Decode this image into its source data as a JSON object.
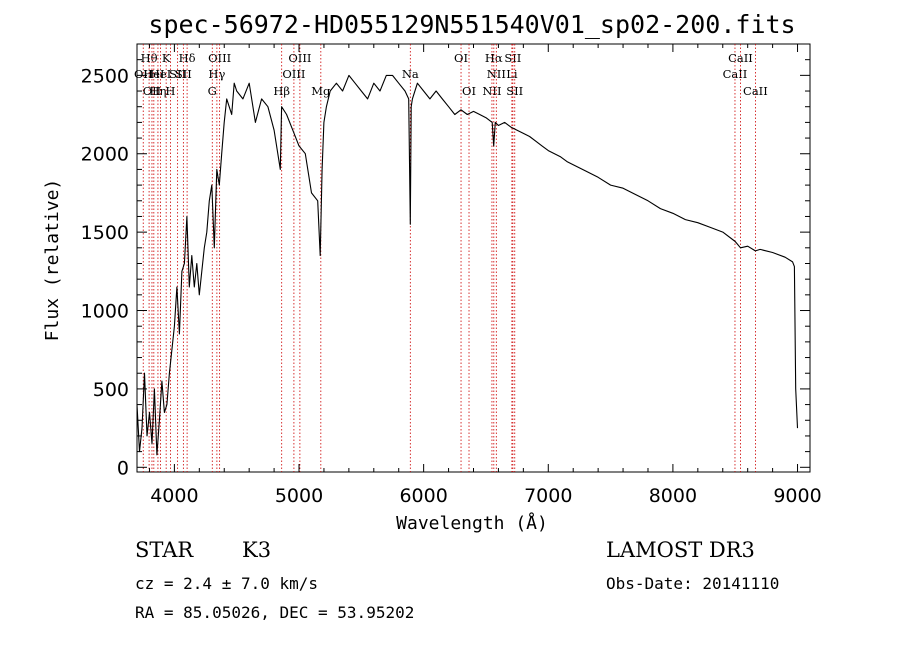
{
  "chart_data": {
    "type": "line",
    "title": "spec-56972-HD055129N551540V01_sp02-200.fits",
    "xlabel": "Wavelength (Å)",
    "ylabel": "Flux (relative)",
    "xlim": [
      3700,
      9100
    ],
    "ylim": [
      -30,
      2700
    ],
    "xticks": [
      4000,
      5000,
      6000,
      7000,
      8000,
      9000
    ],
    "yticks": [
      0,
      500,
      1000,
      1500,
      2000,
      2500
    ],
    "grid": false,
    "series": [
      {
        "name": "flux",
        "x": [
          3700,
          3720,
          3740,
          3760,
          3780,
          3800,
          3820,
          3840,
          3860,
          3880,
          3900,
          3920,
          3940,
          3960,
          3980,
          4000,
          4020,
          4040,
          4060,
          4080,
          4100,
          4120,
          4140,
          4160,
          4180,
          4200,
          4220,
          4240,
          4260,
          4280,
          4300,
          4320,
          4340,
          4360,
          4380,
          4400,
          4420,
          4440,
          4460,
          4480,
          4500,
          4550,
          4600,
          4650,
          4700,
          4750,
          4800,
          4850,
          4860,
          4900,
          4950,
          5000,
          5050,
          5100,
          5150,
          5170,
          5185,
          5200,
          5220,
          5250,
          5300,
          5350,
          5400,
          5450,
          5500,
          5550,
          5600,
          5650,
          5700,
          5750,
          5800,
          5850,
          5880,
          5893,
          5900,
          5910,
          5950,
          6000,
          6050,
          6100,
          6150,
          6200,
          6250,
          6300,
          6350,
          6400,
          6450,
          6500,
          6550,
          6562,
          6575,
          6600,
          6650,
          6700,
          6750,
          6800,
          6850,
          6900,
          6950,
          7000,
          7050,
          7100,
          7150,
          7200,
          7300,
          7400,
          7500,
          7600,
          7700,
          7800,
          7900,
          8000,
          8100,
          8200,
          8300,
          8400,
          8500,
          8542,
          8600,
          8662,
          8700,
          8800,
          8900,
          8960,
          8975,
          8985,
          9000
        ],
        "y": [
          400,
          100,
          250,
          600,
          200,
          350,
          150,
          500,
          80,
          300,
          550,
          350,
          400,
          600,
          750,
          900,
          1150,
          850,
          1250,
          1300,
          1600,
          1150,
          1350,
          1150,
          1300,
          1100,
          1250,
          1400,
          1500,
          1700,
          1800,
          1400,
          1900,
          1800,
          2000,
          2200,
          2350,
          2300,
          2250,
          2450,
          2400,
          2350,
          2450,
          2200,
          2350,
          2300,
          2150,
          1900,
          2300,
          2250,
          2150,
          2050,
          2000,
          1750,
          1700,
          1350,
          1900,
          2200,
          2300,
          2400,
          2450,
          2400,
          2500,
          2450,
          2400,
          2350,
          2450,
          2400,
          2500,
          2500,
          2450,
          2400,
          2350,
          1550,
          2300,
          2350,
          2450,
          2400,
          2350,
          2400,
          2350,
          2300,
          2250,
          2280,
          2250,
          2270,
          2250,
          2230,
          2200,
          2050,
          2200,
          2180,
          2200,
          2170,
          2150,
          2130,
          2110,
          2080,
          2050,
          2020,
          2000,
          1980,
          1950,
          1930,
          1890,
          1850,
          1800,
          1780,
          1740,
          1700,
          1650,
          1620,
          1580,
          1560,
          1530,
          1500,
          1440,
          1400,
          1410,
          1380,
          1390,
          1370,
          1340,
          1310,
          1280,
          500,
          250
        ]
      }
    ],
    "line_markers": [
      {
        "wave": 3750,
        "label": "OII",
        "row": 2
      },
      {
        "wave": 3797,
        "label": "Hθ",
        "row": 1
      },
      {
        "wave": 3820,
        "label": "OII",
        "row": 3
      },
      {
        "wave": 3835,
        "label": "HeI",
        "row": 2
      },
      {
        "wave": 3868,
        "label": "Hη",
        "row": 3
      },
      {
        "wave": 3889,
        "label": "HeI",
        "row": 2
      },
      {
        "wave": 3934,
        "label": "K",
        "row": 1
      },
      {
        "wave": 3968,
        "label": "H",
        "row": 3
      },
      {
        "wave": 4026,
        "label": "SII",
        "row": 2
      },
      {
        "wave": 4072,
        "label": "SII",
        "row": 2
      },
      {
        "wave": 4102,
        "label": "Hδ",
        "row": 1
      },
      {
        "wave": 4304,
        "label": "G",
        "row": 3
      },
      {
        "wave": 4341,
        "label": "Hγ",
        "row": 2
      },
      {
        "wave": 4363,
        "label": "OIII",
        "row": 1
      },
      {
        "wave": 4861,
        "label": "Hβ",
        "row": 3
      },
      {
        "wave": 4959,
        "label": "OIII",
        "row": 2
      },
      {
        "wave": 5007,
        "label": "OIII",
        "row": 1
      },
      {
        "wave": 5175,
        "label": "Mg",
        "row": 3
      },
      {
        "wave": 5893,
        "label": "Na",
        "row": 2
      },
      {
        "wave": 6300,
        "label": "OI",
        "row": 1
      },
      {
        "wave": 6364,
        "label": "OI",
        "row": 3
      },
      {
        "wave": 6548,
        "label": "NII",
        "row": 3
      },
      {
        "wave": 6563,
        "label": "Hα",
        "row": 1
      },
      {
        "wave": 6583,
        "label": "NII",
        "row": 2
      },
      {
        "wave": 6708,
        "label": "Li",
        "row": 2
      },
      {
        "wave": 6716,
        "label": "SII",
        "row": 1
      },
      {
        "wave": 6731,
        "label": "SII",
        "row": 3
      },
      {
        "wave": 8498,
        "label": "CaII",
        "row": 2
      },
      {
        "wave": 8542,
        "label": "CaII",
        "row": 1
      },
      {
        "wave": 8662,
        "label": "CaII",
        "row": 3
      }
    ]
  },
  "info": {
    "object_class": "STAR",
    "subclass": "K3",
    "redshift": "cz = 2.4 ± 7.0 km/s",
    "coordinates": "RA =  85.05026, DEC =  53.95202",
    "survey": "LAMOST DR3",
    "obs_date": "Obs-Date: 20141110"
  }
}
